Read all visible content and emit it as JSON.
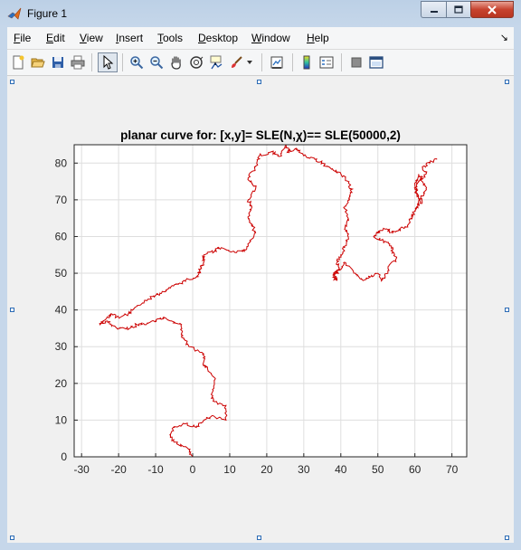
{
  "window": {
    "title": "Figure 1",
    "controls": {
      "minimize": "minimize",
      "maximize": "maximize",
      "close": "close"
    }
  },
  "menubar": {
    "items": [
      "File",
      "Edit",
      "View",
      "Insert",
      "Tools",
      "Desktop",
      "Window",
      "Help"
    ],
    "dock_glyph": "↘"
  },
  "toolbar": {
    "buttons": [
      "new-figure-icon",
      "open-file-icon",
      "save-icon",
      "print-icon",
      "edit-plot-arrow-icon",
      "zoom-in-icon",
      "zoom-out-icon",
      "pan-hand-icon",
      "rotate-3d-icon",
      "data-cursor-icon",
      "brush-icon",
      "link-plot-icon",
      "insert-colorbar-icon",
      "insert-legend-icon",
      "hide-plot-tools-icon",
      "show-plot-tools-icon"
    ]
  },
  "chart_data": {
    "type": "line",
    "title": "planar curve for: [x,y]= SLE(N,χ)== SLE(50000,2)",
    "xlabel": "",
    "ylabel": "",
    "xlim": [
      -32,
      74
    ],
    "ylim": [
      0,
      85
    ],
    "x_ticks": [
      "-30",
      "-20",
      "-10",
      "0",
      "10",
      "20",
      "30",
      "40",
      "50",
      "60",
      "70"
    ],
    "y_ticks": [
      "0",
      "10",
      "20",
      "30",
      "40",
      "50",
      "60",
      "70",
      "80"
    ],
    "grid": true,
    "line_color": "#cc0000",
    "series": [
      {
        "x": [
          0,
          -1,
          -5,
          -6,
          -5,
          -2,
          1,
          3,
          5,
          9,
          9,
          6,
          5,
          6,
          4,
          3,
          3,
          -1,
          -3,
          -3,
          -6,
          -8,
          -10,
          -13,
          -15,
          -17,
          -20,
          -22,
          -23,
          -25,
          -23,
          -22,
          -20,
          -17,
          -15,
          -12,
          -10,
          -8,
          -6,
          -4,
          -2,
          1,
          2,
          3,
          3,
          6,
          7,
          11,
          14,
          15,
          17,
          16,
          15,
          16,
          15,
          17,
          15,
          17,
          18,
          21,
          24,
          25,
          26,
          28,
          30,
          33,
          35,
          38,
          40,
          42,
          43,
          42,
          41,
          42,
          41,
          42,
          41,
          40,
          39,
          40,
          38,
          39,
          38,
          40,
          41,
          44,
          46,
          48,
          50,
          51,
          52,
          53,
          55,
          54,
          53,
          51,
          49,
          50,
          52,
          54,
          56,
          58,
          59,
          60,
          61,
          62,
          63,
          62,
          61,
          60,
          61,
          62,
          60,
          61,
          63,
          62,
          64,
          66
        ],
        "y": [
          0,
          2,
          4,
          6,
          8,
          9,
          8,
          10,
          11,
          10,
          14,
          15,
          17,
          21,
          24,
          25,
          28,
          30,
          33,
          36,
          37,
          38,
          37,
          36,
          36,
          35,
          35,
          36,
          37,
          36,
          38,
          39,
          38,
          39,
          41,
          43,
          44,
          45,
          46,
          47,
          48,
          49,
          51,
          53,
          55,
          56,
          57,
          56,
          56,
          58,
          61,
          63,
          65,
          68,
          70,
          73,
          76,
          79,
          82,
          83,
          82,
          85,
          83,
          84,
          82,
          81,
          80,
          78,
          77,
          75,
          72,
          70,
          68,
          65,
          62,
          60,
          57,
          55,
          53,
          51,
          49,
          48,
          50,
          51,
          53,
          50,
          48,
          49,
          50,
          48,
          49,
          52,
          54,
          56,
          58,
          59,
          60,
          61,
          62,
          61,
          62,
          63,
          65,
          67,
          69,
          71,
          73,
          75,
          77,
          74,
          71,
          69,
          72,
          75,
          77,
          79,
          80,
          81
        ]
      }
    ]
  }
}
